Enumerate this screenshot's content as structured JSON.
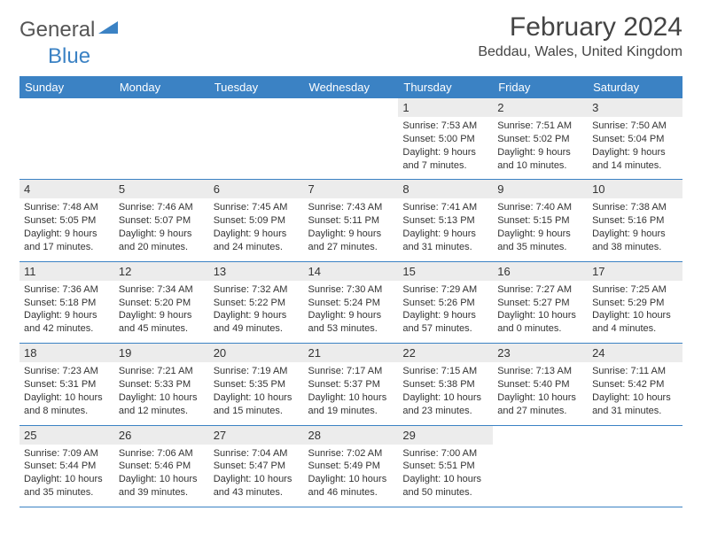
{
  "logo": {
    "word1": "General",
    "word2": "Blue"
  },
  "title": "February 2024",
  "location": "Beddau, Wales, United Kingdom",
  "colors": {
    "header_bg": "#3b82c4",
    "header_text": "#ffffff",
    "date_bar_bg": "#ececec",
    "border": "#3b82c4",
    "text": "#333333"
  },
  "day_names": [
    "Sunday",
    "Monday",
    "Tuesday",
    "Wednesday",
    "Thursday",
    "Friday",
    "Saturday"
  ],
  "weeks": [
    [
      null,
      null,
      null,
      null,
      {
        "d": "1",
        "sunrise": "7:53 AM",
        "sunset": "5:00 PM",
        "dl1": "Daylight: 9 hours",
        "dl2": "and 7 minutes."
      },
      {
        "d": "2",
        "sunrise": "7:51 AM",
        "sunset": "5:02 PM",
        "dl1": "Daylight: 9 hours",
        "dl2": "and 10 minutes."
      },
      {
        "d": "3",
        "sunrise": "7:50 AM",
        "sunset": "5:04 PM",
        "dl1": "Daylight: 9 hours",
        "dl2": "and 14 minutes."
      }
    ],
    [
      {
        "d": "4",
        "sunrise": "7:48 AM",
        "sunset": "5:05 PM",
        "dl1": "Daylight: 9 hours",
        "dl2": "and 17 minutes."
      },
      {
        "d": "5",
        "sunrise": "7:46 AM",
        "sunset": "5:07 PM",
        "dl1": "Daylight: 9 hours",
        "dl2": "and 20 minutes."
      },
      {
        "d": "6",
        "sunrise": "7:45 AM",
        "sunset": "5:09 PM",
        "dl1": "Daylight: 9 hours",
        "dl2": "and 24 minutes."
      },
      {
        "d": "7",
        "sunrise": "7:43 AM",
        "sunset": "5:11 PM",
        "dl1": "Daylight: 9 hours",
        "dl2": "and 27 minutes."
      },
      {
        "d": "8",
        "sunrise": "7:41 AM",
        "sunset": "5:13 PM",
        "dl1": "Daylight: 9 hours",
        "dl2": "and 31 minutes."
      },
      {
        "d": "9",
        "sunrise": "7:40 AM",
        "sunset": "5:15 PM",
        "dl1": "Daylight: 9 hours",
        "dl2": "and 35 minutes."
      },
      {
        "d": "10",
        "sunrise": "7:38 AM",
        "sunset": "5:16 PM",
        "dl1": "Daylight: 9 hours",
        "dl2": "and 38 minutes."
      }
    ],
    [
      {
        "d": "11",
        "sunrise": "7:36 AM",
        "sunset": "5:18 PM",
        "dl1": "Daylight: 9 hours",
        "dl2": "and 42 minutes."
      },
      {
        "d": "12",
        "sunrise": "7:34 AM",
        "sunset": "5:20 PM",
        "dl1": "Daylight: 9 hours",
        "dl2": "and 45 minutes."
      },
      {
        "d": "13",
        "sunrise": "7:32 AM",
        "sunset": "5:22 PM",
        "dl1": "Daylight: 9 hours",
        "dl2": "and 49 minutes."
      },
      {
        "d": "14",
        "sunrise": "7:30 AM",
        "sunset": "5:24 PM",
        "dl1": "Daylight: 9 hours",
        "dl2": "and 53 minutes."
      },
      {
        "d": "15",
        "sunrise": "7:29 AM",
        "sunset": "5:26 PM",
        "dl1": "Daylight: 9 hours",
        "dl2": "and 57 minutes."
      },
      {
        "d": "16",
        "sunrise": "7:27 AM",
        "sunset": "5:27 PM",
        "dl1": "Daylight: 10 hours",
        "dl2": "and 0 minutes."
      },
      {
        "d": "17",
        "sunrise": "7:25 AM",
        "sunset": "5:29 PM",
        "dl1": "Daylight: 10 hours",
        "dl2": "and 4 minutes."
      }
    ],
    [
      {
        "d": "18",
        "sunrise": "7:23 AM",
        "sunset": "5:31 PM",
        "dl1": "Daylight: 10 hours",
        "dl2": "and 8 minutes."
      },
      {
        "d": "19",
        "sunrise": "7:21 AM",
        "sunset": "5:33 PM",
        "dl1": "Daylight: 10 hours",
        "dl2": "and 12 minutes."
      },
      {
        "d": "20",
        "sunrise": "7:19 AM",
        "sunset": "5:35 PM",
        "dl1": "Daylight: 10 hours",
        "dl2": "and 15 minutes."
      },
      {
        "d": "21",
        "sunrise": "7:17 AM",
        "sunset": "5:37 PM",
        "dl1": "Daylight: 10 hours",
        "dl2": "and 19 minutes."
      },
      {
        "d": "22",
        "sunrise": "7:15 AM",
        "sunset": "5:38 PM",
        "dl1": "Daylight: 10 hours",
        "dl2": "and 23 minutes."
      },
      {
        "d": "23",
        "sunrise": "7:13 AM",
        "sunset": "5:40 PM",
        "dl1": "Daylight: 10 hours",
        "dl2": "and 27 minutes."
      },
      {
        "d": "24",
        "sunrise": "7:11 AM",
        "sunset": "5:42 PM",
        "dl1": "Daylight: 10 hours",
        "dl2": "and 31 minutes."
      }
    ],
    [
      {
        "d": "25",
        "sunrise": "7:09 AM",
        "sunset": "5:44 PM",
        "dl1": "Daylight: 10 hours",
        "dl2": "and 35 minutes."
      },
      {
        "d": "26",
        "sunrise": "7:06 AM",
        "sunset": "5:46 PM",
        "dl1": "Daylight: 10 hours",
        "dl2": "and 39 minutes."
      },
      {
        "d": "27",
        "sunrise": "7:04 AM",
        "sunset": "5:47 PM",
        "dl1": "Daylight: 10 hours",
        "dl2": "and 43 minutes."
      },
      {
        "d": "28",
        "sunrise": "7:02 AM",
        "sunset": "5:49 PM",
        "dl1": "Daylight: 10 hours",
        "dl2": "and 46 minutes."
      },
      {
        "d": "29",
        "sunrise": "7:00 AM",
        "sunset": "5:51 PM",
        "dl1": "Daylight: 10 hours",
        "dl2": "and 50 minutes."
      },
      null,
      null
    ]
  ],
  "labels": {
    "sunrise": "Sunrise: ",
    "sunset": "Sunset: "
  }
}
